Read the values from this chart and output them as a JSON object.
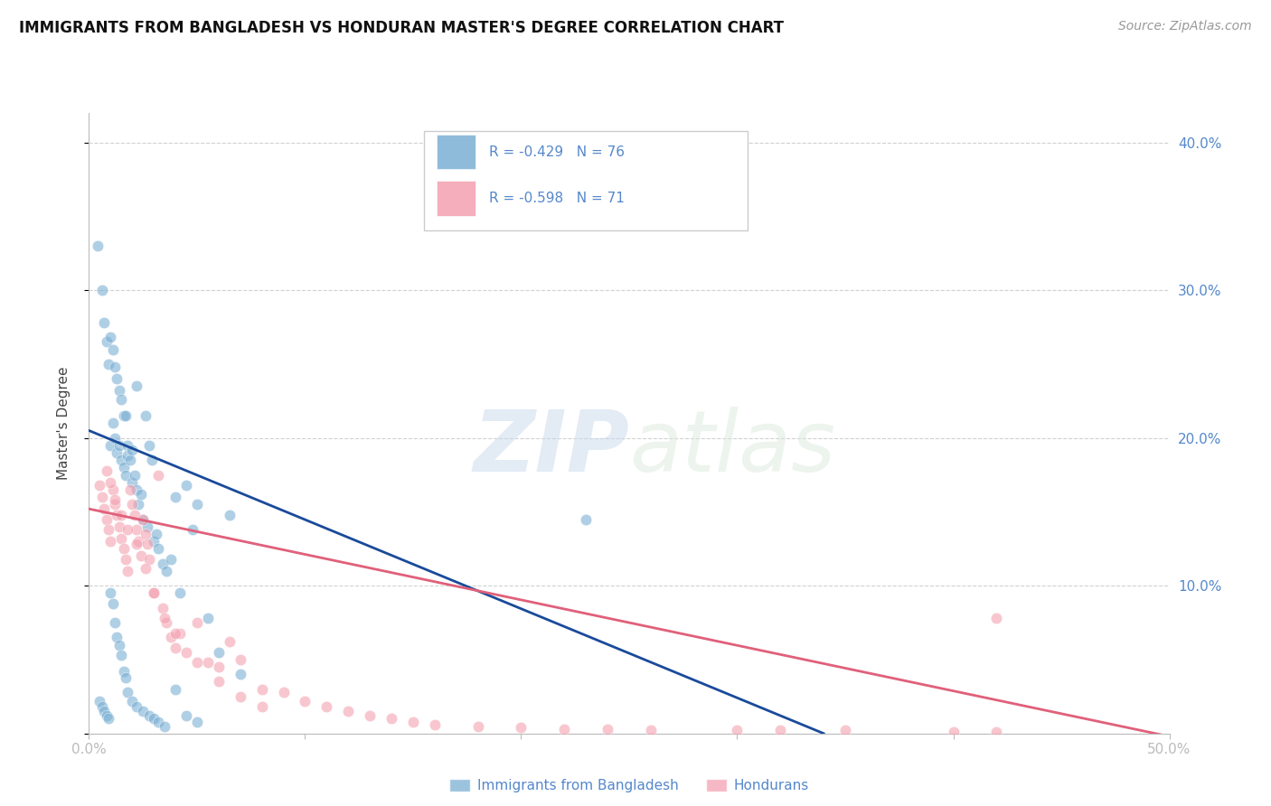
{
  "title": "IMMIGRANTS FROM BANGLADESH VS HONDURAN MASTER'S DEGREE CORRELATION CHART",
  "source": "Source: ZipAtlas.com",
  "ylabel": "Master's Degree",
  "xlim": [
    0.0,
    0.5
  ],
  "ylim": [
    0.0,
    0.42
  ],
  "x_ticks": [
    0.0,
    0.1,
    0.2,
    0.3,
    0.4,
    0.5
  ],
  "x_tick_labels": [
    "0.0%",
    "",
    "",
    "",
    "",
    "50.0%"
  ],
  "right_y_ticks": [
    0.1,
    0.2,
    0.3,
    0.4
  ],
  "right_y_tick_labels": [
    "10.0%",
    "20.0%",
    "30.0%",
    "40.0%"
  ],
  "legend_r1": "R = -0.429",
  "legend_n1": "N = 76",
  "legend_r2": "R = -0.598",
  "legend_n2": "N = 71",
  "color_blue": "#7BAFD4",
  "color_pink": "#F4A0B0",
  "line_blue": "#1A4A9A",
  "line_pink": "#E0607A",
  "watermark_zip": "ZIP",
  "watermark_atlas": "atlas",
  "label1": "Immigrants from Bangladesh",
  "label2": "Hondurans",
  "blue_x": [
    0.004,
    0.006,
    0.007,
    0.008,
    0.009,
    0.01,
    0.01,
    0.011,
    0.011,
    0.012,
    0.012,
    0.013,
    0.013,
    0.014,
    0.014,
    0.015,
    0.015,
    0.016,
    0.016,
    0.017,
    0.017,
    0.018,
    0.018,
    0.019,
    0.02,
    0.02,
    0.021,
    0.022,
    0.022,
    0.023,
    0.024,
    0.025,
    0.026,
    0.027,
    0.028,
    0.029,
    0.03,
    0.031,
    0.032,
    0.034,
    0.036,
    0.038,
    0.04,
    0.042,
    0.045,
    0.048,
    0.05,
    0.055,
    0.06,
    0.065,
    0.07,
    0.005,
    0.006,
    0.007,
    0.008,
    0.009,
    0.01,
    0.011,
    0.012,
    0.013,
    0.014,
    0.015,
    0.016,
    0.017,
    0.018,
    0.02,
    0.022,
    0.025,
    0.028,
    0.03,
    0.032,
    0.035,
    0.04,
    0.045,
    0.05,
    0.23
  ],
  "blue_y": [
    0.33,
    0.3,
    0.278,
    0.265,
    0.25,
    0.268,
    0.195,
    0.21,
    0.26,
    0.248,
    0.2,
    0.24,
    0.19,
    0.232,
    0.195,
    0.226,
    0.185,
    0.215,
    0.18,
    0.215,
    0.175,
    0.195,
    0.188,
    0.185,
    0.192,
    0.17,
    0.175,
    0.165,
    0.235,
    0.155,
    0.162,
    0.145,
    0.215,
    0.14,
    0.195,
    0.185,
    0.13,
    0.135,
    0.125,
    0.115,
    0.11,
    0.118,
    0.16,
    0.095,
    0.168,
    0.138,
    0.155,
    0.078,
    0.055,
    0.148,
    0.04,
    0.022,
    0.018,
    0.015,
    0.012,
    0.01,
    0.095,
    0.088,
    0.075,
    0.065,
    0.06,
    0.053,
    0.042,
    0.038,
    0.028,
    0.022,
    0.018,
    0.015,
    0.012,
    0.01,
    0.008,
    0.005,
    0.03,
    0.012,
    0.008,
    0.145
  ],
  "pink_x": [
    0.005,
    0.006,
    0.007,
    0.008,
    0.009,
    0.01,
    0.011,
    0.012,
    0.013,
    0.014,
    0.015,
    0.016,
    0.017,
    0.018,
    0.019,
    0.02,
    0.021,
    0.022,
    0.023,
    0.024,
    0.025,
    0.026,
    0.027,
    0.028,
    0.03,
    0.032,
    0.034,
    0.036,
    0.038,
    0.04,
    0.042,
    0.045,
    0.05,
    0.055,
    0.06,
    0.065,
    0.07,
    0.08,
    0.09,
    0.1,
    0.11,
    0.12,
    0.13,
    0.14,
    0.15,
    0.16,
    0.18,
    0.2,
    0.22,
    0.24,
    0.26,
    0.3,
    0.32,
    0.35,
    0.4,
    0.42,
    0.008,
    0.01,
    0.012,
    0.015,
    0.018,
    0.022,
    0.026,
    0.03,
    0.035,
    0.04,
    0.05,
    0.06,
    0.07,
    0.08,
    0.42
  ],
  "pink_y": [
    0.168,
    0.16,
    0.152,
    0.145,
    0.138,
    0.13,
    0.165,
    0.155,
    0.148,
    0.14,
    0.132,
    0.125,
    0.118,
    0.11,
    0.165,
    0.155,
    0.148,
    0.138,
    0.13,
    0.12,
    0.145,
    0.135,
    0.128,
    0.118,
    0.095,
    0.175,
    0.085,
    0.075,
    0.065,
    0.058,
    0.068,
    0.055,
    0.075,
    0.048,
    0.045,
    0.062,
    0.05,
    0.03,
    0.028,
    0.022,
    0.018,
    0.015,
    0.012,
    0.01,
    0.008,
    0.006,
    0.005,
    0.004,
    0.003,
    0.003,
    0.002,
    0.002,
    0.002,
    0.002,
    0.001,
    0.001,
    0.178,
    0.17,
    0.158,
    0.148,
    0.138,
    0.128,
    0.112,
    0.095,
    0.078,
    0.068,
    0.048,
    0.035,
    0.025,
    0.018,
    0.078
  ],
  "blue_line_x0": 0.0,
  "blue_line_x1": 0.34,
  "blue_line_y0": 0.205,
  "blue_line_y1": 0.0,
  "pink_line_x0": 0.0,
  "pink_line_x1": 0.5,
  "pink_line_y0": 0.152,
  "pink_line_y1": -0.002,
  "background_color": "#FFFFFF",
  "grid_color": "#CCCCCC",
  "tick_color": "#5588CC",
  "axis_color": "#BBBBBB"
}
